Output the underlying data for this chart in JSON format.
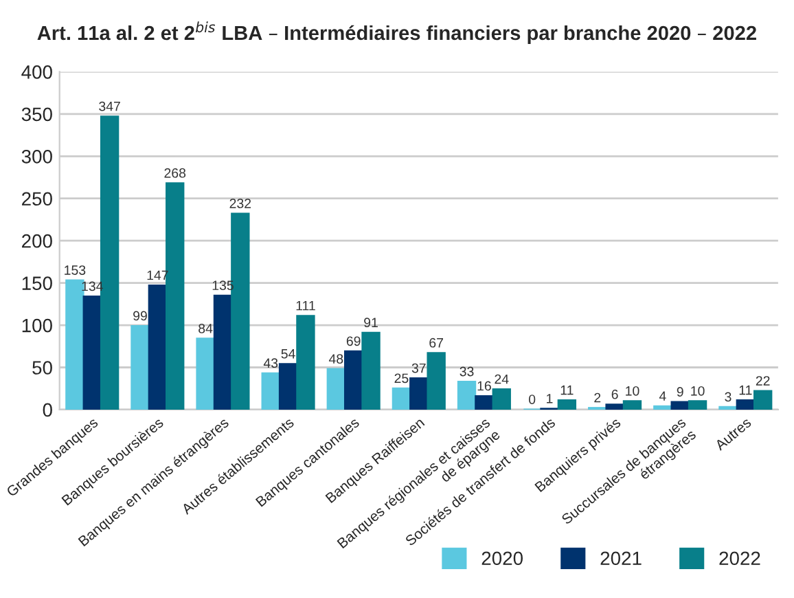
{
  "chart_data": {
    "type": "bar",
    "title": "Art. 11a al. 2 et 2$^{bis}$ LBA – Intermédiaires financiers par branche 2020 – 2022",
    "categories": [
      "Grandes banques",
      "Banques boursières",
      "Banques en mains étrangères",
      "Autres établissements",
      "Banques cantonales",
      "Banques Raiffeisen",
      "Banques régionales et caisses\nde épargne",
      "Sociétés de transfert de fonds",
      "Banquiers privés",
      "Succursales de banques\nétrangères",
      "Autres"
    ],
    "series": [
      {
        "name": "2020",
        "color": "#5bc8e0",
        "values": [
          153,
          99,
          84,
          43,
          48,
          25,
          33,
          0,
          2,
          4,
          3
        ]
      },
      {
        "name": "2021",
        "color": "#00336e",
        "values": [
          134,
          147,
          135,
          54,
          69,
          37,
          16,
          1,
          6,
          9,
          11
        ]
      },
      {
        "name": "2022",
        "color": "#087f8a",
        "values": [
          347,
          268,
          232,
          111,
          91,
          67,
          24,
          11,
          10,
          10,
          22
        ]
      }
    ],
    "ylim": [
      0,
      400
    ],
    "yticks": [
      0,
      50,
      100,
      150,
      200,
      250,
      300,
      350,
      400
    ],
    "grid": "y",
    "legend": "bottom right",
    "data_labels": true
  }
}
